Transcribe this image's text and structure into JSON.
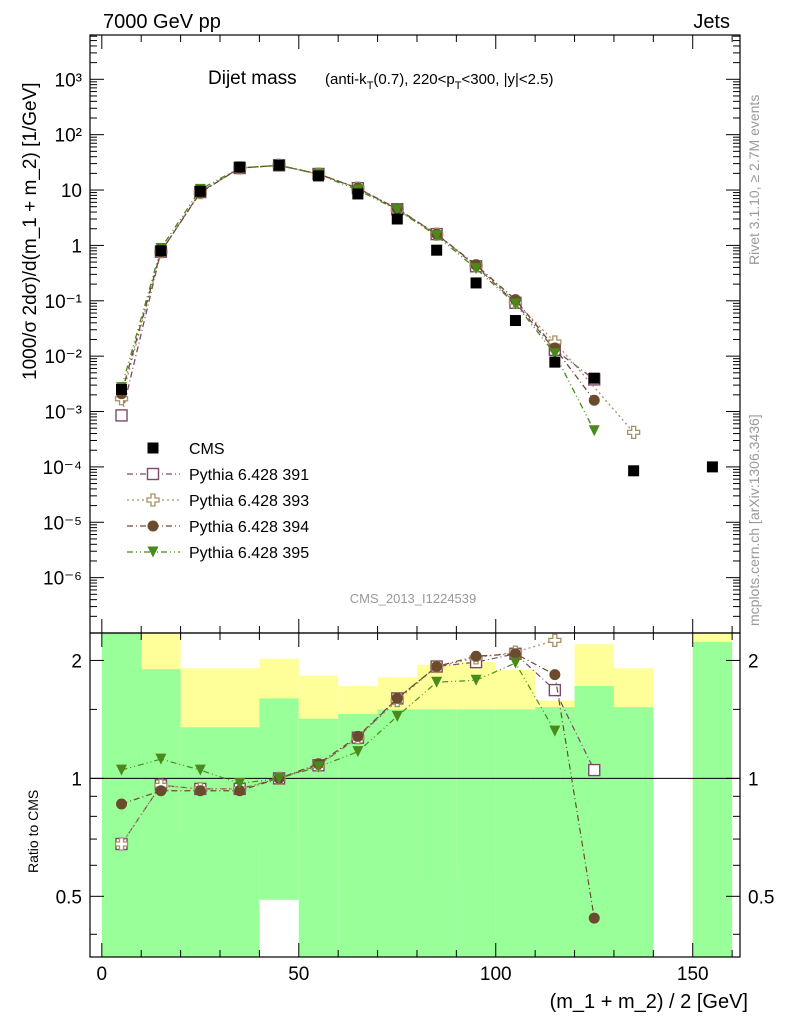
{
  "header": {
    "left": "7000 GeV pp",
    "right": "Jets",
    "title": "Dijet mass",
    "title_sub": "(anti-k",
    "title_sub_T": "T",
    "title_sub_rest": "(0.7), 220<p",
    "title_sub_T2": "T",
    "title_sub_end": "<300, |y|<2.5)",
    "side_right_top": "Rivet 3.1.10, ≥ 2.7M events",
    "side_right_bottom": "mcplots.cern.ch [arXiv:1306.3436]",
    "analysis_id": "CMS_2013_I1224539"
  },
  "axes": {
    "ylabel_main": "1000/σ 2dσ)/d(m_1 + m_2) [1/GeV]",
    "ylabel_ratio": "Ratio to CMS",
    "xlabel": "(m_1 + m_2) / 2 [GeV]",
    "x_ticks": [
      "0",
      "50",
      "100",
      "150"
    ],
    "y_ticks_main": [
      "10⁻⁶",
      "10⁻⁵",
      "10⁻⁴",
      "10⁻³",
      "10⁻²",
      "10⁻¹",
      "1",
      "10",
      "10²",
      "10³"
    ],
    "y_ticks_ratio": [
      "0.5",
      "1",
      "2"
    ]
  },
  "chart_data": {
    "type": "scatter",
    "title": "Dijet mass",
    "xlim": [
      -3,
      162
    ],
    "ylim_log": [
      -7,
      3.8
    ],
    "ratio_ylim": [
      0.35,
      2.35
    ],
    "x": [
      5,
      15,
      25,
      35,
      45,
      55,
      65,
      75,
      85,
      95,
      105,
      115,
      125,
      135,
      155
    ],
    "series": [
      {
        "name": "CMS",
        "color": "#000000",
        "marker": "square-filled",
        "values": [
          0.0025,
          0.8,
          9.5,
          26.0,
          28.0,
          18.0,
          8.5,
          3.0,
          0.82,
          0.21,
          0.044,
          0.0078,
          0.004,
          8.5e-05,
          0.0001
        ]
      },
      {
        "name": "Pythia 6.428 391",
        "color": "#7a4a6a",
        "marker": "square-open",
        "line": "dashdot",
        "values": [
          0.00085,
          0.77,
          9.2,
          25.0,
          28.0,
          19.5,
          10.8,
          4.5,
          1.6,
          0.42,
          0.092,
          0.013,
          0.0038,
          null,
          null
        ]
      },
      {
        "name": "Pythia 6.428 393",
        "color": "#a89060",
        "marker": "cross-open",
        "line": "dotted",
        "values": [
          0.0017,
          0.77,
          9.0,
          25.0,
          28.0,
          19.5,
          10.8,
          4.4,
          1.6,
          0.43,
          0.095,
          0.018,
          null,
          0.00042,
          null
        ]
      },
      {
        "name": "Pythia 6.428 394",
        "color": "#6b4a2e",
        "marker": "circle-filled",
        "line": "dashdot",
        "values": [
          0.0021,
          0.77,
          9.0,
          25.0,
          28.0,
          19.5,
          10.8,
          4.6,
          1.6,
          0.44,
          0.105,
          0.014,
          0.0016,
          null,
          null
        ]
      },
      {
        "name": "Pythia 6.428 395",
        "color": "#4a8a1a",
        "marker": "triangle-down-filled",
        "line": "dashdotdot",
        "values": [
          0.0027,
          0.88,
          10.3,
          25.0,
          27.8,
          19.2,
          10.0,
          4.4,
          1.5,
          0.38,
          0.088,
          0.011,
          0.00045,
          null,
          null
        ]
      }
    ],
    "ratio_series": [
      {
        "name": "Pythia 6.428 391",
        "values": [
          0.68,
          0.96,
          0.94,
          0.94,
          1.0,
          1.08,
          1.27,
          1.6,
          1.93,
          1.98,
          2.08,
          1.68,
          1.05,
          null,
          null
        ]
      },
      {
        "name": "Pythia 6.428 393",
        "values": [
          0.68,
          0.96,
          0.94,
          0.94,
          1.0,
          1.08,
          1.27,
          1.58,
          1.93,
          2.03,
          2.1,
          2.25,
          null,
          null,
          null
        ]
      },
      {
        "name": "Pythia 6.428 394",
        "values": [
          0.86,
          0.93,
          0.93,
          0.93,
          1.0,
          1.09,
          1.28,
          1.6,
          1.93,
          2.05,
          2.08,
          1.84,
          0.44,
          null,
          null
        ]
      },
      {
        "name": "Pythia 6.428 395",
        "values": [
          1.05,
          1.12,
          1.05,
          0.97,
          1.0,
          1.07,
          1.17,
          1.44,
          1.76,
          1.78,
          1.97,
          1.32,
          null,
          null,
          null
        ]
      }
    ],
    "uncertainty_bands": {
      "x_edges": [
        0,
        10,
        20,
        30,
        40,
        50,
        60,
        70,
        80,
        90,
        100,
        110,
        120,
        130,
        140,
        150,
        160
      ],
      "yellow_lo": [
        0.35,
        0.35,
        0.72,
        0.66,
        0.5,
        0.72,
        0.56,
        0.55,
        0.55,
        0.6,
        0.58,
        0.41,
        0.35,
        0.67,
        null,
        0.35
      ],
      "yellow_hi": [
        2.35,
        2.35,
        1.91,
        1.91,
        2.02,
        1.83,
        1.72,
        1.81,
        1.95,
        1.98,
        1.89,
        1.58,
        2.2,
        1.91,
        null,
        2.35
      ],
      "green_lo": [
        0.35,
        0.35,
        0.35,
        0.35,
        0.49,
        0.35,
        0.35,
        0.35,
        0.35,
        0.35,
        0.35,
        0.35,
        0.35,
        0.35,
        null,
        0.35
      ],
      "green_hi": [
        2.35,
        1.9,
        1.35,
        1.35,
        1.6,
        1.42,
        1.46,
        1.5,
        1.5,
        1.5,
        1.5,
        1.52,
        1.72,
        1.52,
        null,
        2.23
      ]
    }
  }
}
